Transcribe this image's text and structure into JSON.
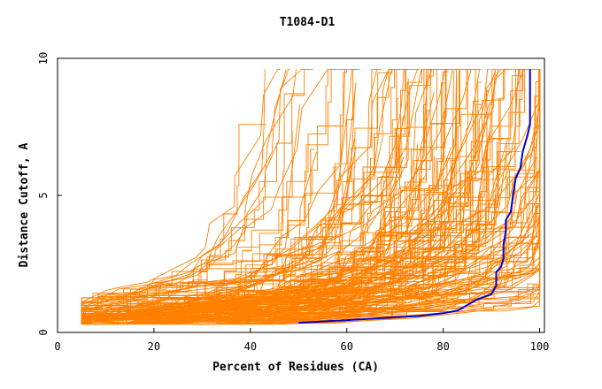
{
  "chart_data": {
    "type": "line",
    "title": "T1084-D1",
    "xlabel": "Percent of Residues (CA)",
    "ylabel": "Distance Cutoff, A",
    "xlim": [
      0,
      101
    ],
    "ylim": [
      0,
      10
    ],
    "x_ticks": [
      0,
      20,
      40,
      60,
      80,
      100
    ],
    "y_ticks": [
      0,
      5,
      10
    ],
    "grid": false,
    "legend": "none",
    "colors": {
      "background_models": "#ff8000",
      "highlighted_model": "#0000cc"
    },
    "series": [
      {
        "role": "background",
        "color": "#ff8000",
        "count": 180,
        "x": [
          12,
          25,
          35,
          45,
          52,
          58,
          63,
          68,
          72,
          76,
          79,
          82,
          84,
          86,
          87
        ],
        "y": [
          0.3,
          0.5,
          0.7,
          0.9,
          1.1,
          1.3,
          1.6,
          1.9,
          2.3,
          2.8,
          3.4,
          4.2,
          5.2,
          6.5,
          9.5
        ]
      },
      {
        "role": "highlighted",
        "color": "#0000cc",
        "x": [
          50,
          55,
          60,
          65,
          70,
          75,
          80,
          83,
          87,
          90,
          91,
          91,
          92,
          92.5,
          92.5,
          93,
          93,
          94,
          95,
          96,
          96.5,
          97.5,
          98,
          98
        ],
        "y": [
          0.35,
          0.4,
          0.45,
          0.5,
          0.55,
          0.6,
          0.7,
          0.8,
          1.2,
          1.4,
          1.7,
          2.2,
          2.4,
          2.7,
          3.2,
          3.7,
          4.1,
          4.4,
          5.6,
          6.0,
          6.6,
          7.2,
          7.6,
          9.6
        ]
      }
    ]
  }
}
